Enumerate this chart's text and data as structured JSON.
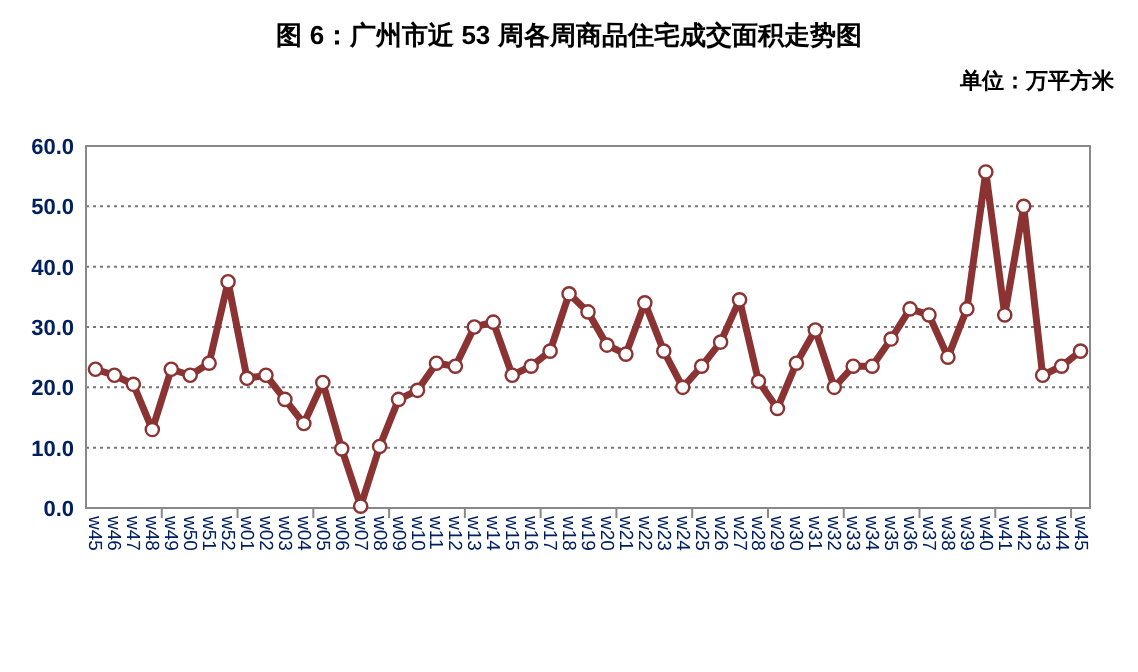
{
  "chart_data": {
    "type": "line",
    "title": "图 6：广州市近 53 周各周商品住宅成交面积走势图",
    "annotations": [
      "单位：万平方米"
    ],
    "categories": [
      "w45",
      "w46",
      "w47",
      "w48",
      "w49",
      "w50",
      "w51",
      "w52",
      "w01",
      "w02",
      "w03",
      "w04",
      "w05",
      "w06",
      "w07",
      "w08",
      "w09",
      "w10",
      "w11",
      "w12",
      "w13",
      "w14",
      "w15",
      "w16",
      "w17",
      "w18",
      "w19",
      "w20",
      "w21",
      "w22",
      "w23",
      "w24",
      "w25",
      "w26",
      "w27",
      "w28",
      "w29",
      "w30",
      "w31",
      "w32",
      "w33",
      "w34",
      "w35",
      "w36",
      "w37",
      "w38",
      "w39",
      "w40",
      "w41",
      "w42",
      "w43",
      "w44",
      "w45"
    ],
    "series": [
      {
        "color": "#8b3333",
        "values": [
          23,
          22,
          20.5,
          13,
          23,
          22,
          24,
          37.5,
          21.5,
          22,
          18,
          14,
          20.8,
          9.8,
          0.3,
          10.2,
          18,
          19.5,
          24,
          23.5,
          30,
          30.8,
          22,
          23.5,
          26,
          35.5,
          32.5,
          27,
          25.5,
          34,
          26,
          20,
          23.5,
          27.5,
          34.5,
          21,
          16.5,
          24,
          29.5,
          20,
          23.5,
          23.5,
          28,
          33,
          32,
          25,
          33,
          55.7,
          32,
          50,
          22,
          23.5,
          26
        ]
      }
    ],
    "ylim": [
      0,
      60
    ],
    "yticks": [
      {
        "value": 0,
        "label": "0.0"
      },
      {
        "value": 10,
        "label": "10.0"
      },
      {
        "value": 20,
        "label": "20.0"
      },
      {
        "value": 30,
        "label": "30.0"
      },
      {
        "value": 40,
        "label": "40.0"
      },
      {
        "value": 50,
        "label": "50.0"
      },
      {
        "value": 60,
        "label": "60.0"
      }
    ],
    "grid": "y",
    "marker": "circle",
    "line_style": "solid"
  }
}
